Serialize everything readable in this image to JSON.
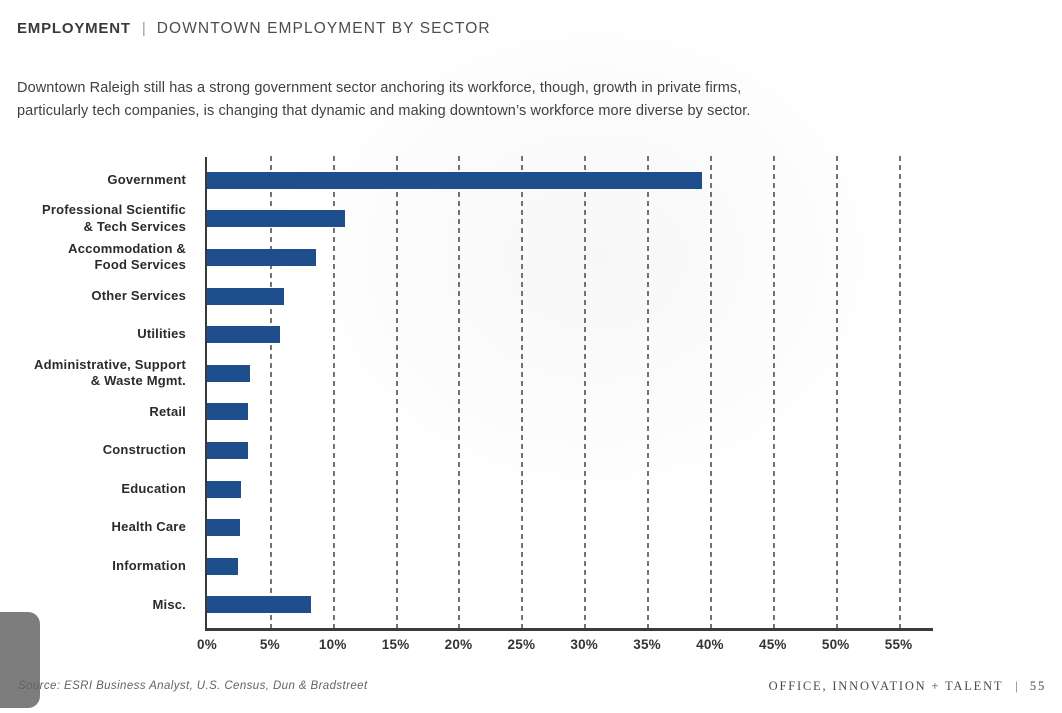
{
  "header": {
    "section": "EMPLOYMENT",
    "separator": "|",
    "title": "DOWNTOWN EMPLOYMENT BY SECTOR"
  },
  "intro": {
    "lines": [
      "Downtown Raleigh still has a strong government sector anchoring its workforce, though, growth in private firms,",
      "particularly tech companies, is changing that dynamic and making downtown’s workforce more diverse by sector."
    ]
  },
  "chart_data": {
    "type": "bar",
    "orientation": "horizontal",
    "title": "Downtown Employment by Sector",
    "categories": [
      "Government",
      "Professional Scientific\n& Tech Services",
      "Accommodation &\nFood Services",
      "Other Services",
      "Utilities",
      "Administrative, Support\n& Waste Mgmt.",
      "Retail",
      "Construction",
      "Education",
      "Health Care",
      "Information",
      "Misc."
    ],
    "values": [
      39.4,
      11.0,
      8.7,
      6.1,
      5.8,
      3.4,
      3.3,
      3.3,
      2.7,
      2.6,
      2.5,
      8.3
    ],
    "value_unit": "%",
    "x_ticks": [
      "0%",
      "5%",
      "10%",
      "15%",
      "20%",
      "25%",
      "30%",
      "35%",
      "40%",
      "45%",
      "50%",
      "55%"
    ],
    "xlim": [
      0,
      57.5
    ],
    "grid": "dashed-vertical",
    "legend": "none",
    "bar_color": "#1f4e8c"
  },
  "source": {
    "text": "Source: ESRI Business Analyst, U.S. Census, Dun & Bradstreet"
  },
  "footer": {
    "section": "OFFICE, INNOVATION + TALENT",
    "separator": "|",
    "page_number": "55"
  },
  "colors": {
    "bar": "#1f4e8c",
    "axis": "#3a3a3a",
    "tab": "#7d7d7d"
  }
}
